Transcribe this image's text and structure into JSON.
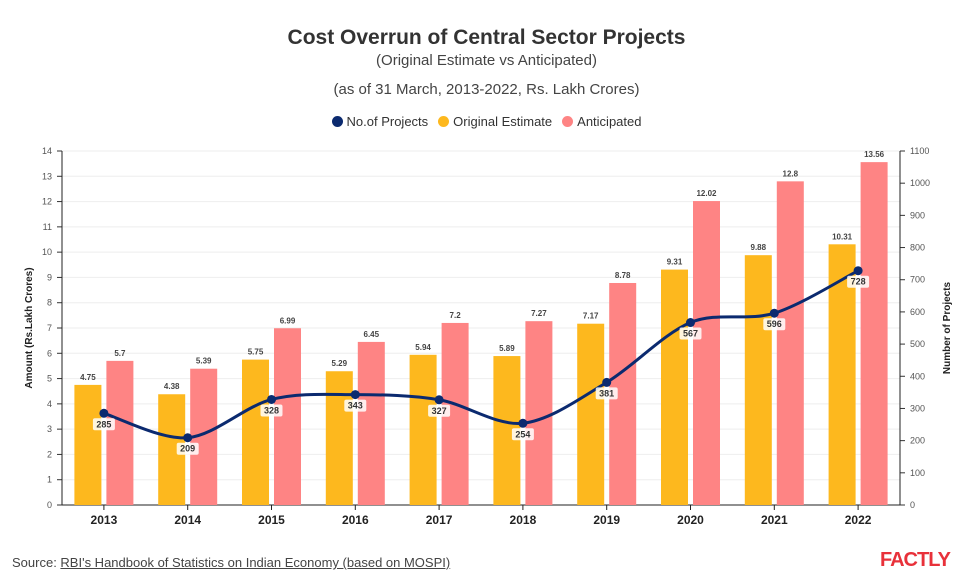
{
  "chart_data": {
    "type": "bar+line",
    "title": "Cost Overrun of Central Sector Projects",
    "subtitle": [
      "(Original Estimate vs Anticipated)",
      "(as of 31 March, 2013-2022, Rs. Lakh Crores)"
    ],
    "categories": [
      "2013",
      "2014",
      "2015",
      "2016",
      "2017",
      "2018",
      "2019",
      "2020",
      "2021",
      "2022"
    ],
    "series": [
      {
        "name": "No.of Projects",
        "type": "line",
        "axis": "right",
        "color": "#0b2a6f",
        "values": [
          285,
          209,
          328,
          343,
          327,
          254,
          381,
          567,
          596,
          728
        ]
      },
      {
        "name": "Original Estimate",
        "type": "bar",
        "axis": "left",
        "color": "#fdb81e",
        "values": [
          4.75,
          4.38,
          5.75,
          5.29,
          5.94,
          5.89,
          7.17,
          9.31,
          9.88,
          10.31
        ]
      },
      {
        "name": "Anticipated",
        "type": "bar",
        "axis": "left",
        "color": "#fe8484",
        "values": [
          5.7,
          5.39,
          6.99,
          6.45,
          7.2,
          7.27,
          8.78,
          12.02,
          12.8,
          13.56
        ]
      }
    ],
    "ylabel": "Amount (Rs.Lakh Crores)",
    "ylim": [
      0,
      14
    ],
    "yticks": [
      0,
      1,
      2,
      3,
      4,
      5,
      6,
      7,
      8,
      9,
      10,
      11,
      12,
      13,
      14
    ],
    "y2label": "Number of Projects",
    "y2lim": [
      0,
      1100
    ],
    "y2ticks": [
      0,
      100,
      200,
      300,
      400,
      500,
      600,
      700,
      800,
      900,
      1000,
      1100
    ],
    "grid": true,
    "legend": "top"
  },
  "source": {
    "prefix": "Source: ",
    "link": "RBI's Handbook of Statistics on Indian Economy (based on MOSPI)"
  },
  "logo": "FACTLY"
}
